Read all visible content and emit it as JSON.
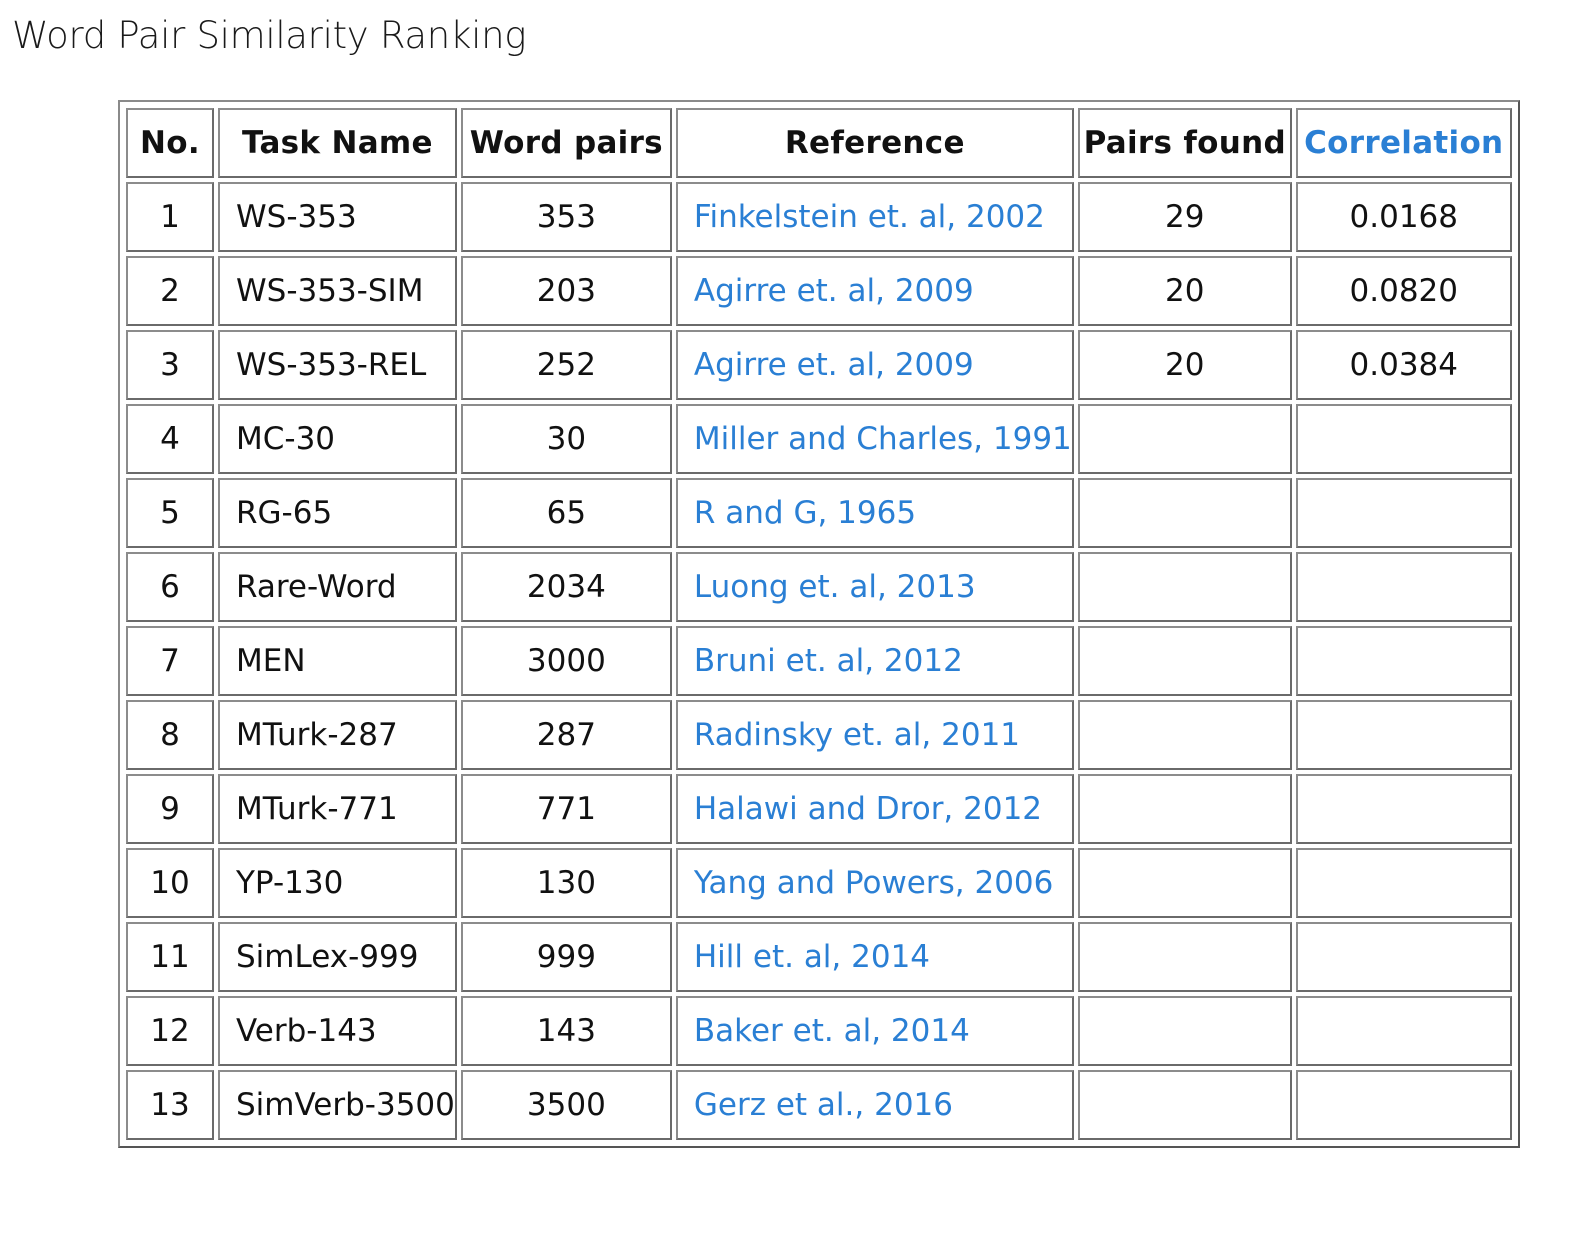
{
  "page": {
    "title": "Word Pair Similarity Ranking"
  },
  "colors": {
    "link": "#2a7fd4",
    "text": "#111111",
    "border": "#6a6a6a"
  },
  "table": {
    "headers": [
      "No.",
      "Task Name",
      "Word pairs",
      "Reference",
      "Pairs found",
      "Correlation"
    ],
    "rows": [
      {
        "no": "1",
        "task": "WS-353",
        "pairs": "353",
        "ref": "Finkelstein et. al, 2002",
        "found": "29",
        "corr": "0.0168"
      },
      {
        "no": "2",
        "task": "WS-353-SIM",
        "pairs": "203",
        "ref": "Agirre et. al, 2009",
        "found": "20",
        "corr": "0.0820"
      },
      {
        "no": "3",
        "task": "WS-353-REL",
        "pairs": "252",
        "ref": "Agirre et. al, 2009",
        "found": "20",
        "corr": "0.0384"
      },
      {
        "no": "4",
        "task": "MC-30",
        "pairs": "30",
        "ref": "Miller and Charles, 1991",
        "found": "",
        "corr": ""
      },
      {
        "no": "5",
        "task": "RG-65",
        "pairs": "65",
        "ref": "R and G, 1965",
        "found": "",
        "corr": ""
      },
      {
        "no": "6",
        "task": "Rare-Word",
        "pairs": "2034",
        "ref": "Luong et. al, 2013",
        "found": "",
        "corr": ""
      },
      {
        "no": "7",
        "task": "MEN",
        "pairs": "3000",
        "ref": "Bruni et. al, 2012",
        "found": "",
        "corr": ""
      },
      {
        "no": "8",
        "task": "MTurk-287",
        "pairs": "287",
        "ref": "Radinsky et. al, 2011",
        "found": "",
        "corr": ""
      },
      {
        "no": "9",
        "task": "MTurk-771",
        "pairs": "771",
        "ref": "Halawi and Dror, 2012",
        "found": "",
        "corr": ""
      },
      {
        "no": "10",
        "task": "YP-130",
        "pairs": "130",
        "ref": "Yang and Powers, 2006",
        "found": "",
        "corr": ""
      },
      {
        "no": "11",
        "task": "SimLex-999",
        "pairs": "999",
        "ref": "Hill et. al, 2014",
        "found": "",
        "corr": ""
      },
      {
        "no": "12",
        "task": "Verb-143",
        "pairs": "143",
        "ref": "Baker et. al, 2014",
        "found": "",
        "corr": ""
      },
      {
        "no": "13",
        "task": "SimVerb-3500",
        "pairs": "3500",
        "ref": "Gerz et al., 2016",
        "found": "",
        "corr": ""
      }
    ]
  }
}
